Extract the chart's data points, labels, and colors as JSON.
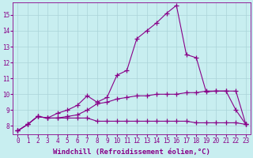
{
  "background_color": "#c8eef0",
  "grid_color": "#aad4d8",
  "line_color": "#880088",
  "marker": "+",
  "markersize": 4,
  "linewidth": 0.8,
  "markeredgewidth": 0.9,
  "xlabel": "Windchill (Refroidissement éolien,°C)",
  "xlabel_fontsize": 6.5,
  "tick_fontsize": 5.5,
  "ylim": [
    7.5,
    15.8
  ],
  "xlim": [
    -0.5,
    23.5
  ],
  "yticks": [
    8,
    9,
    10,
    11,
    12,
    13,
    14,
    15
  ],
  "xticks": [
    0,
    1,
    2,
    3,
    4,
    5,
    6,
    7,
    8,
    9,
    10,
    11,
    12,
    13,
    14,
    15,
    16,
    17,
    18,
    19,
    20,
    21,
    22,
    23
  ],
  "series": [
    [
      7.7,
      8.1,
      8.6,
      8.5,
      8.5,
      8.5,
      8.5,
      8.5,
      8.3,
      8.3,
      8.3,
      8.3,
      8.3,
      8.3,
      8.3,
      8.3,
      8.3,
      8.3,
      8.2,
      8.2,
      8.2,
      8.2,
      8.2,
      8.1
    ],
    [
      7.7,
      8.1,
      8.6,
      8.5,
      8.5,
      8.6,
      8.7,
      9.0,
      9.4,
      9.5,
      9.7,
      9.8,
      9.9,
      9.9,
      10.0,
      10.0,
      10.0,
      10.1,
      10.1,
      10.2,
      10.2,
      10.2,
      9.0,
      8.1
    ],
    [
      7.7,
      8.1,
      8.6,
      8.5,
      8.8,
      9.0,
      9.3,
      9.9,
      9.5,
      9.8,
      11.2,
      11.5,
      13.5,
      14.0,
      14.5,
      15.1,
      15.6,
      12.5,
      12.3,
      10.15,
      10.2,
      10.2,
      10.2,
      8.1
    ]
  ]
}
